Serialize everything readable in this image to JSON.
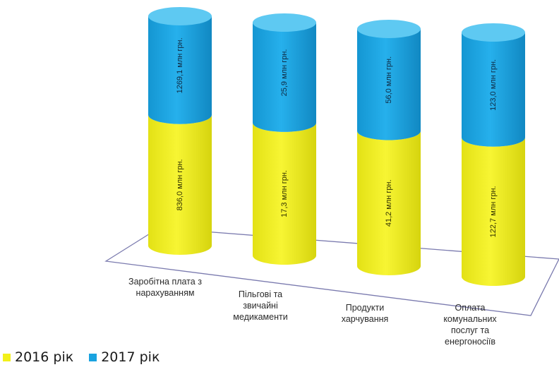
{
  "chart_data": {
    "type": "bar",
    "style": "3d-stacked-cylinder",
    "categories": [
      [
        "Заробітна плата з",
        "нарахуванням"
      ],
      [
        "Пільгові та",
        "звичайні",
        "медикаменти"
      ],
      [
        "Продукти",
        "харчування"
      ],
      [
        "Оплата",
        "комунальних",
        "послуг та",
        "енергоносіїв"
      ]
    ],
    "series": [
      {
        "name": "2016 рік",
        "color": "#f2f01a",
        "values": [
          836.0,
          17.3,
          41.2,
          122.7
        ],
        "labels": [
          "836,0 млн грн.",
          "17,3 млн грн.",
          "41,2 млн грн.",
          "122,7 млн грн."
        ]
      },
      {
        "name": "2017 рік",
        "color": "#1aa3e0",
        "values": [
          1269.1,
          25.9,
          56.0,
          123.0
        ],
        "labels": [
          "1269,1 млн грн.",
          "25,9 млн грн.",
          "56,0 млн грн.",
          "123,0 млн грн."
        ]
      }
    ],
    "title": "",
    "xlabel": "",
    "ylabel": "",
    "grid": false,
    "legend_position": "bottom-left"
  },
  "legend": {
    "items": [
      {
        "label": "2016 рік",
        "color": "#f2f01a"
      },
      {
        "label": "2017 рік",
        "color": "#1aa3e0"
      }
    ]
  }
}
